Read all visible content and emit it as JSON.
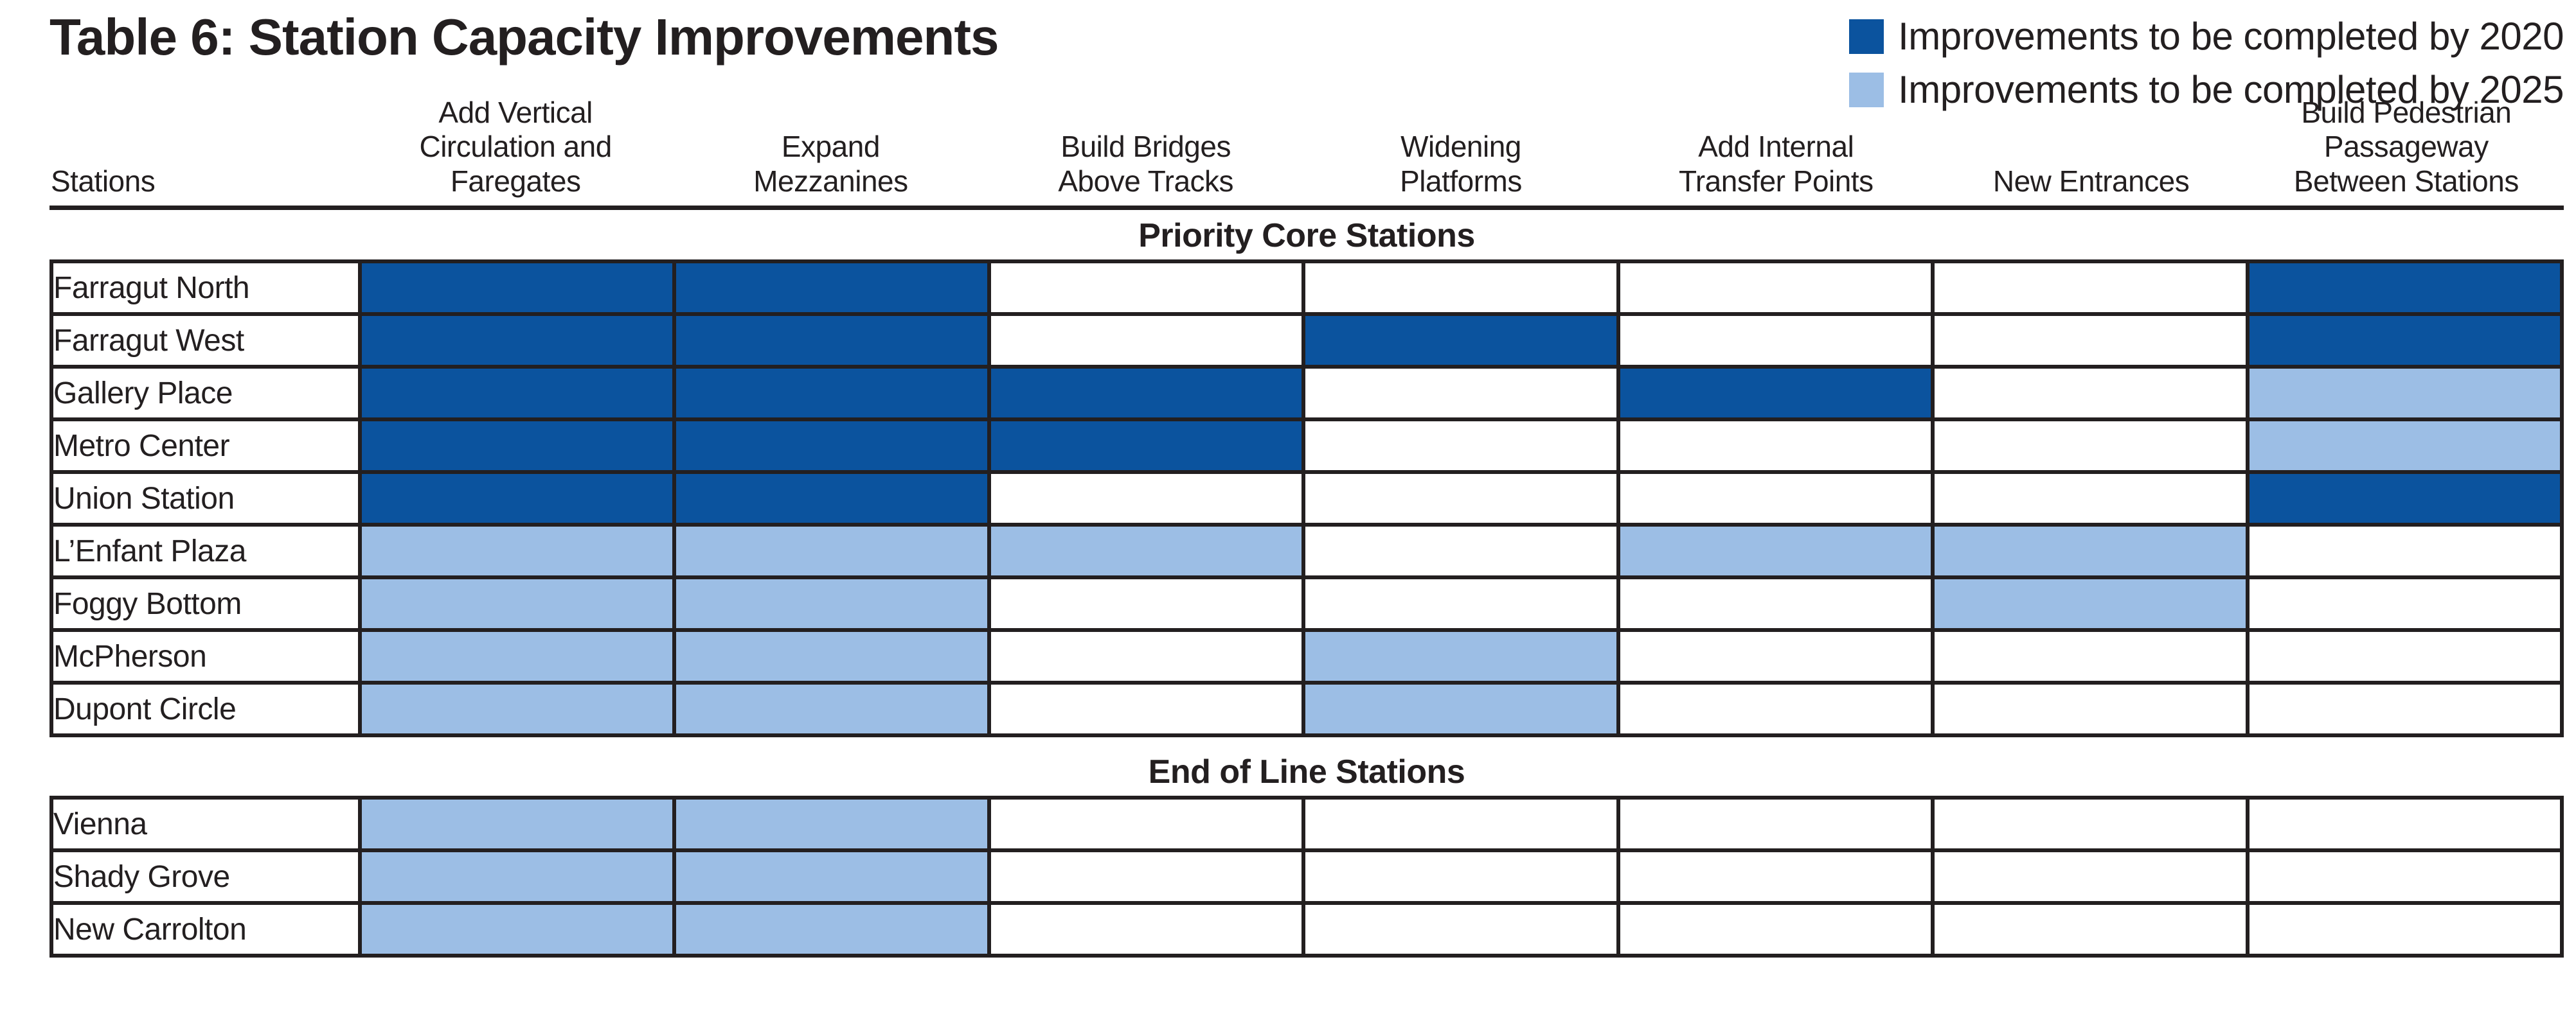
{
  "title": "Table 6: Station Capacity Improvements",
  "legend": [
    {
      "key": "2020",
      "label": "Improvements to be completed by 2020",
      "color": "#0B539E"
    },
    {
      "key": "2025",
      "label": "Improvements to be completed by 2025",
      "color": "#9CBEE5"
    }
  ],
  "colors": {
    "by2020": "#0B539E",
    "by2025": "#9CBEE5",
    "grid": "#231f20"
  },
  "columns": [
    "Stations",
    "Add Vertical\nCirculation and\nFaregates",
    "Expand\nMezzanines",
    "Build Bridges\nAbove Tracks",
    "Widening\nPlatforms",
    "Add Internal\nTransfer Points",
    "New Entrances",
    "Build Pedestrian\nPassageway\nBetween Stations"
  ],
  "sections": [
    {
      "heading": "Priority Core Stations",
      "rows": [
        {
          "station": "Farragut North",
          "cells": [
            "2020",
            "2020",
            "",
            "",
            "",
            "",
            "2020"
          ]
        },
        {
          "station": "Farragut West",
          "cells": [
            "2020",
            "2020",
            "",
            "2020",
            "",
            "",
            "2020"
          ]
        },
        {
          "station": "Gallery Place",
          "cells": [
            "2020",
            "2020",
            "2020",
            "",
            "2020",
            "",
            "2025"
          ]
        },
        {
          "station": "Metro Center",
          "cells": [
            "2020",
            "2020",
            "2020",
            "",
            "",
            "",
            "2025"
          ]
        },
        {
          "station": "Union Station",
          "cells": [
            "2020",
            "2020",
            "",
            "",
            "",
            "",
            "2020"
          ]
        },
        {
          "station": "L’Enfant Plaza",
          "cells": [
            "2025",
            "2025",
            "2025",
            "",
            "2025",
            "2025",
            ""
          ]
        },
        {
          "station": "Foggy Bottom",
          "cells": [
            "2025",
            "2025",
            "",
            "",
            "",
            "2025",
            ""
          ]
        },
        {
          "station": "McPherson",
          "cells": [
            "2025",
            "2025",
            "",
            "2025",
            "",
            "",
            ""
          ]
        },
        {
          "station": "Dupont Circle",
          "cells": [
            "2025",
            "2025",
            "",
            "2025",
            "",
            "",
            ""
          ]
        }
      ]
    },
    {
      "heading": "End of Line Stations",
      "rows": [
        {
          "station": "Vienna",
          "cells": [
            "2025",
            "2025",
            "",
            "",
            "",
            "",
            ""
          ]
        },
        {
          "station": "Shady Grove",
          "cells": [
            "2025",
            "2025",
            "",
            "",
            "",
            "",
            ""
          ]
        },
        {
          "station": "New Carrolton",
          "cells": [
            "2025",
            "2025",
            "",
            "",
            "",
            "",
            ""
          ]
        }
      ]
    }
  ]
}
